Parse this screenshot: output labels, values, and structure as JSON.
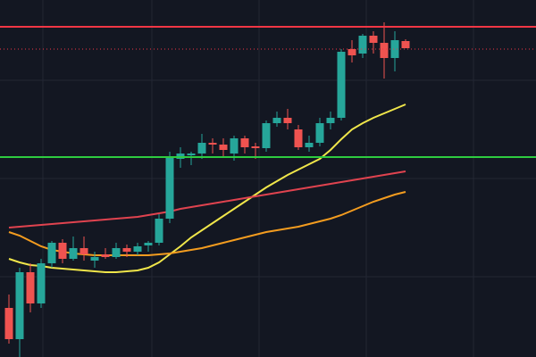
{
  "chart_data": {
    "type": "candlestick",
    "ylim": [
      0,
      400
    ],
    "up_color": "#26a69a",
    "down_color": "#ef5350",
    "open": [
      55,
      20,
      95,
      60,
      105,
      128,
      110,
      122,
      108,
      115,
      112,
      122,
      118,
      125,
      128,
      155,
      222,
      226,
      228,
      240,
      238,
      228,
      245,
      236,
      234,
      262,
      268,
      255,
      235,
      240,
      262,
      268,
      345,
      340,
      360,
      352,
      335,
      354
    ],
    "high": [
      70,
      100,
      105,
      110,
      130,
      132,
      135,
      135,
      118,
      122,
      128,
      126,
      128,
      130,
      160,
      230,
      235,
      230,
      250,
      245,
      245,
      248,
      248,
      240,
      265,
      275,
      278,
      260,
      248,
      268,
      275,
      345,
      355,
      362,
      365,
      375,
      365,
      356
    ],
    "low": [
      15,
      0,
      50,
      55,
      100,
      105,
      108,
      108,
      100,
      110,
      110,
      112,
      114,
      118,
      125,
      150,
      212,
      215,
      222,
      228,
      225,
      220,
      228,
      222,
      230,
      258,
      255,
      232,
      230,
      236,
      255,
      265,
      330,
      335,
      340,
      312,
      320,
      346
    ],
    "close": [
      20,
      95,
      60,
      105,
      128,
      110,
      122,
      115,
      112,
      112,
      122,
      118,
      124,
      128,
      155,
      224,
      228,
      228,
      240,
      238,
      232,
      245,
      235,
      234,
      262,
      268,
      262,
      235,
      240,
      262,
      268,
      342,
      338,
      360,
      352,
      335,
      355,
      346
    ],
    "moving_averages": [
      {
        "color": "#f0e64a",
        "values": [
          110,
          106,
          103,
          102,
          100,
          99,
          98,
          97,
          96,
          95,
          95,
          96,
          97,
          100,
          106,
          115,
          124,
          134,
          142,
          150,
          158,
          166,
          174,
          182,
          190,
          197,
          204,
          210,
          216,
          222,
          232,
          244,
          255,
          262,
          268,
          273,
          278,
          283
        ]
      },
      {
        "color": "#f39c1f",
        "values": [
          140,
          136,
          130,
          124,
          120,
          118,
          116,
          115,
          114,
          114,
          114,
          114,
          114,
          114,
          115,
          116,
          118,
          120,
          122,
          125,
          128,
          131,
          134,
          137,
          140,
          142,
          144,
          146,
          149,
          152,
          155,
          159,
          164,
          169,
          174,
          178,
          182,
          185
        ]
      },
      {
        "color": "#e0434f",
        "values": [
          145,
          146,
          147,
          148,
          149,
          150,
          151,
          152,
          153,
          154,
          155,
          156,
          157,
          159,
          161,
          163,
          166,
          168,
          170,
          172,
          174,
          176,
          178,
          180,
          182,
          184,
          186,
          188,
          190,
          192,
          194,
          196,
          198,
          200,
          202,
          204,
          206,
          208
        ]
      }
    ],
    "levels": [
      {
        "value": 370,
        "color": "#f23645",
        "style": "solid"
      },
      {
        "value": 345,
        "color": "#f23645",
        "style": "dotted"
      },
      {
        "value": 224,
        "color": "#2ecc40",
        "style": "solid"
      }
    ]
  }
}
